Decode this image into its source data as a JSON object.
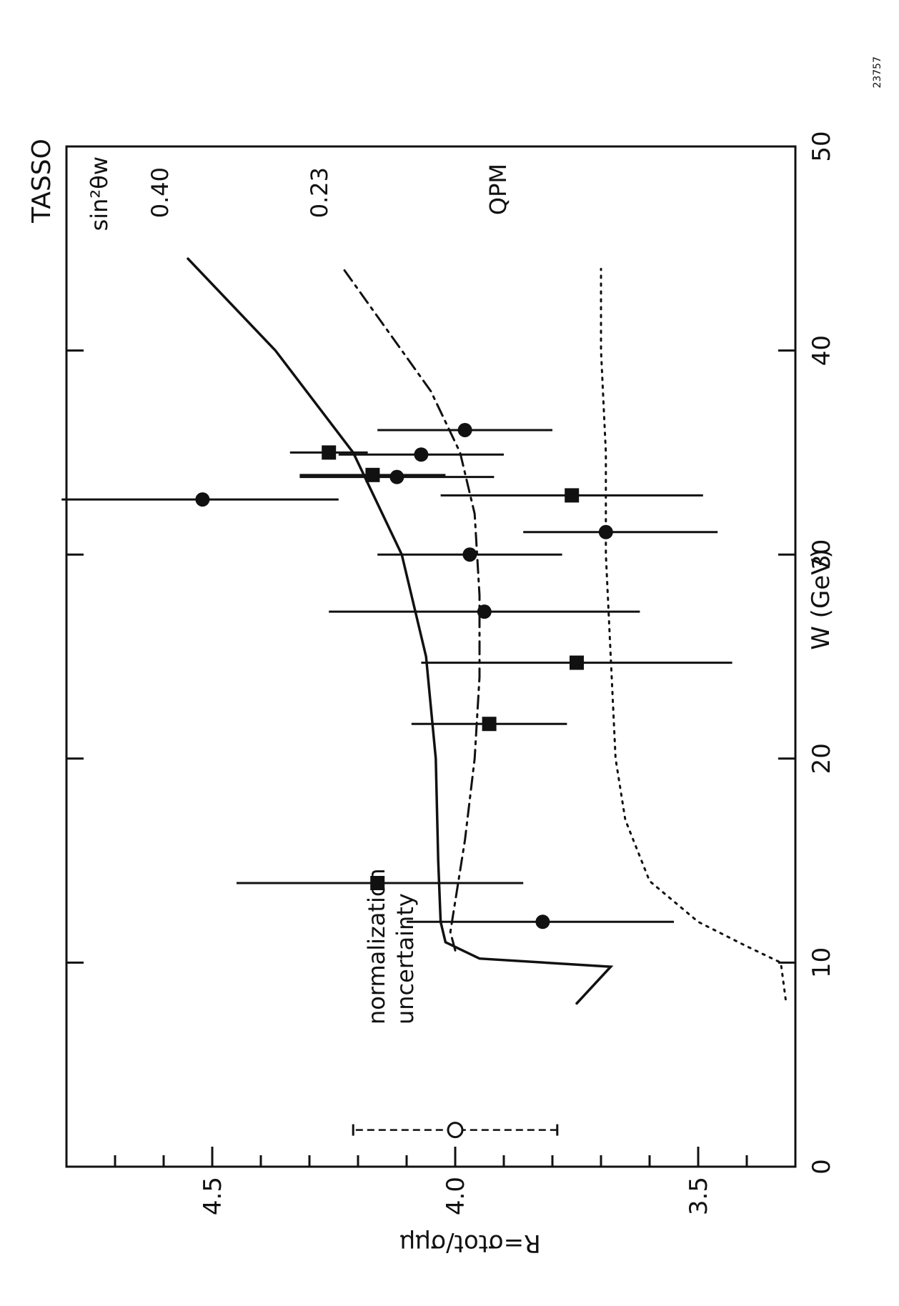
{
  "chart_data": {
    "type": "scatter",
    "title": "TASSO",
    "xlabel": "W (GeV)",
    "ylabel": "R=σtot/σμμ",
    "xlim": [
      0,
      50
    ],
    "ylim": [
      3.3,
      4.8
    ],
    "x_ticks": [
      "0",
      "10",
      "20",
      "30",
      "40",
      "50"
    ],
    "y_ticks": [
      "3.5",
      "4.0",
      "4.5"
    ],
    "grid": false,
    "orientation": "rotated 90° counter-clockwise",
    "legend_title": "sin²θw",
    "series": [
      {
        "name": "0.40",
        "style": "solid",
        "points": [
          [
            8.0,
            3.75
          ],
          [
            9.8,
            3.68
          ],
          [
            10.2,
            3.95
          ],
          [
            11.0,
            4.02
          ],
          [
            12.0,
            4.03
          ],
          [
            15.0,
            4.035
          ],
          [
            20.0,
            4.04
          ],
          [
            25.0,
            4.06
          ],
          [
            30.0,
            4.11
          ],
          [
            35.0,
            4.21
          ],
          [
            40.0,
            4.37
          ],
          [
            44.5,
            4.55
          ]
        ]
      },
      {
        "name": "0.23",
        "style": "dash-dot",
        "points": [
          [
            10.6,
            4.0
          ],
          [
            11.5,
            4.01
          ],
          [
            13.0,
            4.0
          ],
          [
            16.0,
            3.98
          ],
          [
            20.0,
            3.96
          ],
          [
            24.0,
            3.95
          ],
          [
            28.0,
            3.95
          ],
          [
            32.0,
            3.96
          ],
          [
            35.0,
            3.99
          ],
          [
            38.0,
            4.05
          ],
          [
            41.0,
            4.14
          ],
          [
            44.0,
            4.23
          ]
        ]
      },
      {
        "name": "QPM",
        "style": "dotted",
        "points": [
          [
            8.2,
            3.32
          ],
          [
            10.0,
            3.33
          ],
          [
            10.8,
            3.4
          ],
          [
            12.0,
            3.5
          ],
          [
            14.0,
            3.6
          ],
          [
            17.0,
            3.65
          ],
          [
            20.0,
            3.67
          ],
          [
            25.0,
            3.68
          ],
          [
            30.0,
            3.69
          ],
          [
            35.0,
            3.69
          ],
          [
            40.0,
            3.7
          ],
          [
            44.0,
            3.7
          ]
        ]
      },
      {
        "name": "",
        "marker": "circle",
        "points": [
          {
            "x": 12.0,
            "y": 3.82,
            "xerr": 0.0,
            "yerr_low": 0.27,
            "yerr_high": 0.28
          },
          {
            "x": 27.2,
            "y": 3.94,
            "yerr_low": 0.32,
            "yerr_high": 0.32
          },
          {
            "x": 30.0,
            "y": 3.97,
            "yerr_low": 0.19,
            "yerr_high": 0.19
          },
          {
            "x": 31.1,
            "y": 3.69,
            "yerr_low": 0.23,
            "yerr_high": 0.17
          },
          {
            "x": 32.7,
            "y": 4.52,
            "yerr_low": 0.28,
            "yerr_high": 0.29
          },
          {
            "x": 33.8,
            "y": 4.12,
            "yerr_low": 0.2,
            "yerr_high": 0.2
          },
          {
            "x": 34.9,
            "y": 4.07,
            "yerr_low": 0.17,
            "yerr_high": 0.17
          },
          {
            "x": 36.1,
            "y": 3.98,
            "yerr_low": 0.18,
            "yerr_high": 0.18
          }
        ]
      },
      {
        "name": "",
        "marker": "square",
        "points": [
          {
            "x": 13.9,
            "y": 4.16,
            "yerr_low": 0.3,
            "yerr_high": 0.29
          },
          {
            "x": 21.7,
            "y": 3.93,
            "yerr_low": 0.16,
            "yerr_high": 0.16
          },
          {
            "x": 24.7,
            "y": 3.75,
            "yerr_low": 0.32,
            "yerr_high": 0.32
          },
          {
            "x": 32.9,
            "y": 3.76,
            "yerr_low": 0.27,
            "yerr_high": 0.27
          },
          {
            "x": 33.9,
            "y": 4.17,
            "yerr_low": 0.15,
            "yerr_high": 0.15
          },
          {
            "x": 35.0,
            "y": 4.26,
            "yerr_low": 0.08,
            "yerr_high": 0.08
          }
        ]
      }
    ],
    "normalization": {
      "label_line1": "normalization",
      "label_line2": "uncertainty",
      "x": 1.8,
      "y": 4.0,
      "yerr": 0.21
    },
    "curve_labels": [
      "0.40",
      "0.23",
      "QPM"
    ],
    "corner_number": "23757"
  }
}
